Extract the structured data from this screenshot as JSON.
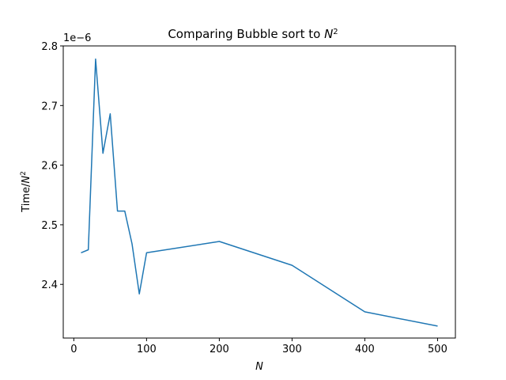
{
  "chart_data": {
    "type": "line",
    "title": "Comparing Bubble sort to N²",
    "title_plain": "Comparing Bubble sort to ",
    "title_var": "N",
    "title_sup": "2",
    "xlabel": "N",
    "ylabel_prefix": "Time/",
    "ylabel_var": "N",
    "ylabel_sup": "2",
    "y_offset_label": "1e−6",
    "x_ticks": [
      "0",
      "100",
      "200",
      "300",
      "400",
      "500"
    ],
    "x_tick_values": [
      0,
      100,
      200,
      300,
      400,
      500
    ],
    "y_ticks": [
      "2.4",
      "2.5",
      "2.6",
      "2.7",
      "2.8"
    ],
    "y_tick_values": [
      2.4,
      2.5,
      2.6,
      2.7,
      2.8
    ],
    "xlim": [
      -14.5,
      524.5
    ],
    "ylim": [
      2.31,
      2.8
    ],
    "grid": false,
    "series": [
      {
        "color": "#1f77b4",
        "x": [
          10,
          20,
          30,
          40,
          50,
          60,
          70,
          80,
          90,
          100,
          200,
          300,
          400,
          500
        ],
        "y": [
          2.453,
          2.458,
          2.778,
          2.62,
          2.686,
          2.523,
          2.523,
          2.468,
          2.384,
          2.453,
          2.472,
          2.432,
          2.354,
          2.33
        ]
      }
    ]
  }
}
